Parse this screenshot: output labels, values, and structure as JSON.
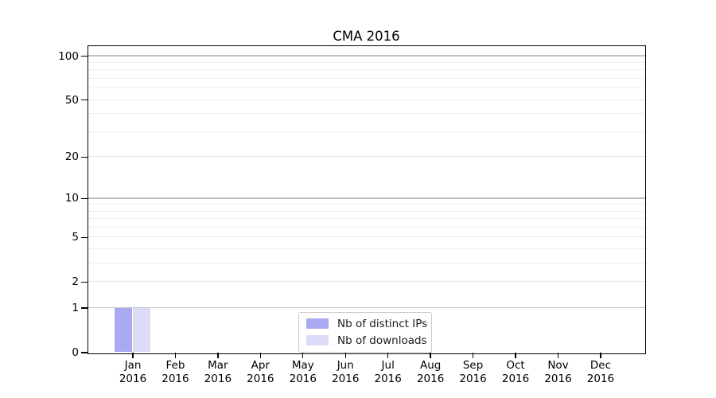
{
  "chart_data": {
    "type": "bar",
    "title": "CMA 2016",
    "categories": [
      "Jan 2016",
      "Feb 2016",
      "Mar 2016",
      "Apr 2016",
      "May 2016",
      "Jun 2016",
      "Jul 2016",
      "Aug 2016",
      "Sep 2016",
      "Oct 2016",
      "Nov 2016",
      "Dec 2016"
    ],
    "series": [
      {
        "name": "Nb of distinct IPs",
        "color": "#aaaaf0",
        "values": [
          1,
          0,
          0,
          0,
          0,
          0,
          0,
          0,
          0,
          0,
          0,
          0
        ]
      },
      {
        "name": "Nb of downloads",
        "color": "#dcdcf8",
        "values": [
          1,
          0,
          0,
          0,
          0,
          0,
          0,
          0,
          0,
          0,
          0,
          0
        ]
      }
    ],
    "xlabel": "",
    "ylabel": "",
    "yscale": "log1p",
    "ylim": [
      0,
      117
    ],
    "yticks": [
      0,
      1,
      2,
      5,
      10,
      20,
      50,
      100
    ],
    "grid": "horizontal",
    "legend_position": "lower-center-inside"
  }
}
